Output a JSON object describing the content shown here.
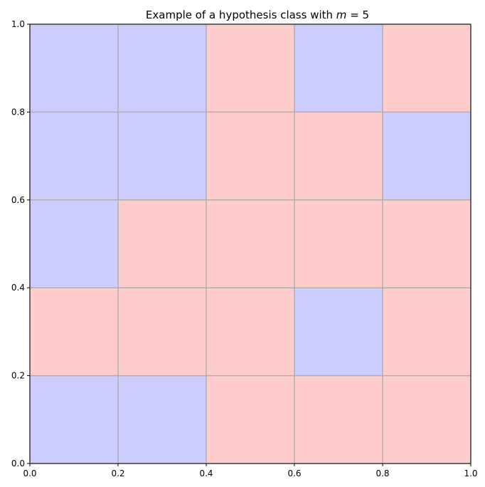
{
  "chart_data": {
    "type": "heatmap",
    "title": "Example of a hypothesis class with m = 5",
    "title_parts": {
      "prefix": "Example of a hypothesis class with ",
      "math_var": "m",
      "math_rest": " = 5"
    },
    "xlabel": "",
    "ylabel": "",
    "xlim": [
      0,
      1
    ],
    "ylim": [
      0,
      1
    ],
    "x_ticks": [
      "0.0",
      "0.2",
      "0.4",
      "0.6",
      "0.8",
      "1.0"
    ],
    "y_ticks": [
      "0.0",
      "0.2",
      "0.4",
      "0.6",
      "0.8",
      "1.0"
    ],
    "grid": true,
    "grid_size": 5,
    "colors": {
      "blue": "#ccccff",
      "red": "#ffcccc",
      "grid": "#b0b0b0"
    },
    "cells_top_to_bottom": [
      [
        "blue",
        "blue",
        "red",
        "blue",
        "red"
      ],
      [
        "blue",
        "blue",
        "red",
        "red",
        "blue"
      ],
      [
        "blue",
        "red",
        "red",
        "red",
        "red"
      ],
      [
        "red",
        "red",
        "red",
        "blue",
        "red"
      ],
      [
        "blue",
        "blue",
        "red",
        "red",
        "red"
      ]
    ]
  }
}
